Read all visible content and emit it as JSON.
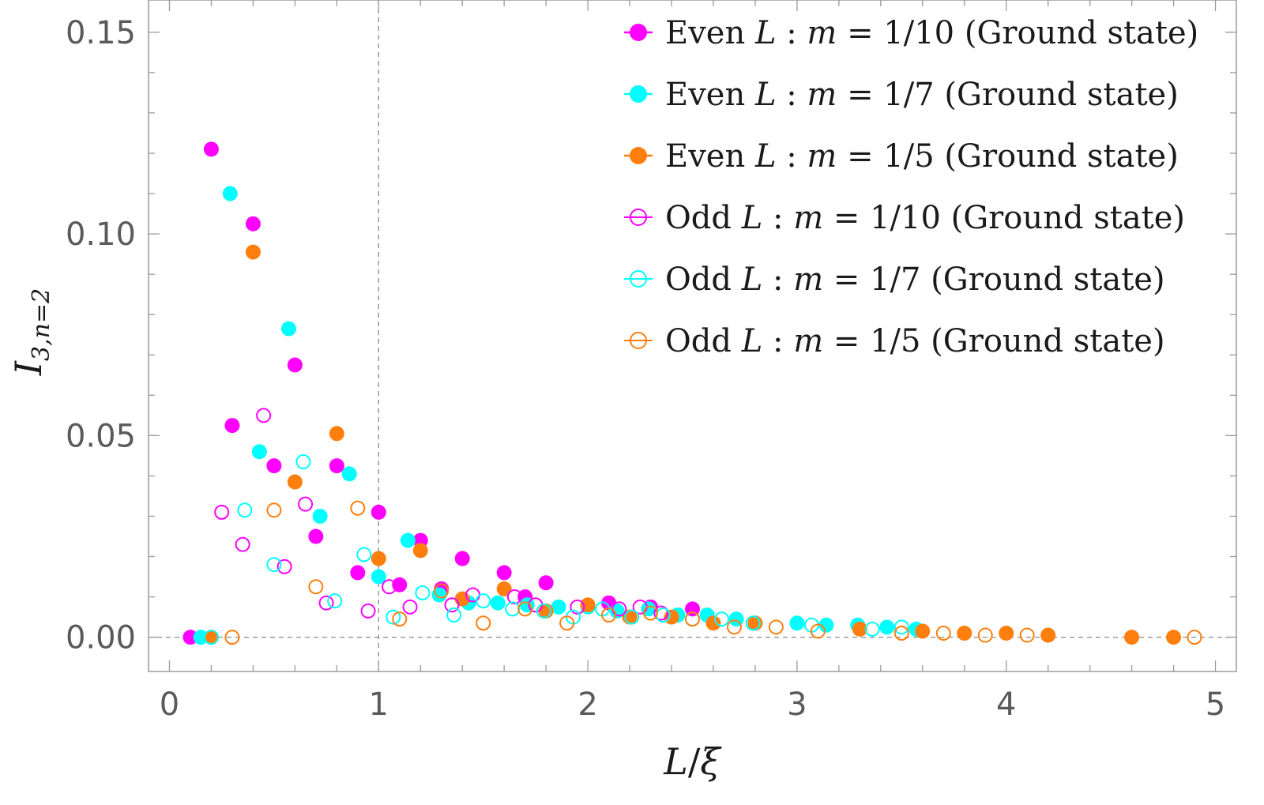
{
  "chart_data": {
    "type": "scatter",
    "title": "",
    "xlabel": "L/ξ",
    "ylabel": "I3,n=2",
    "ylabel_parts": {
      "main": "I",
      "sub": "3,n=2"
    },
    "xlim": [
      -0.1,
      5.1
    ],
    "ylim": [
      -0.0085,
      0.158
    ],
    "x_ticks": [
      0,
      1,
      2,
      3,
      4,
      5
    ],
    "x_tick_labels": [
      "0",
      "1",
      "2",
      "3",
      "4",
      "5"
    ],
    "y_ticks": [
      0.0,
      0.05,
      0.1,
      0.15
    ],
    "y_tick_labels": [
      "0.00",
      "0.05",
      "0.10",
      "0.15"
    ],
    "x_minor_step": 0.2,
    "y_minor_step": 0.01,
    "grid": false,
    "reference_lines": [
      {
        "axis": "x",
        "value": 1,
        "style": "dashed"
      },
      {
        "axis": "y",
        "value": 0,
        "style": "dashed"
      }
    ],
    "legend_position": "top-right",
    "series": [
      {
        "name": "Even L :  m = 1/10 (Ground state)",
        "color": "#ff00ff",
        "filled": true,
        "points": [
          [
            0.1,
            0.0
          ],
          [
            0.2,
            0.121
          ],
          [
            0.3,
            0.0525
          ],
          [
            0.4,
            0.1025
          ],
          [
            0.5,
            0.0425
          ],
          [
            0.6,
            0.0675
          ],
          [
            0.7,
            0.025
          ],
          [
            0.8,
            0.0425
          ],
          [
            0.9,
            0.016
          ],
          [
            1.0,
            0.031
          ],
          [
            1.1,
            0.013
          ],
          [
            1.2,
            0.024
          ],
          [
            1.3,
            0.012
          ],
          [
            1.4,
            0.0195
          ],
          [
            1.6,
            0.016
          ],
          [
            1.7,
            0.01
          ],
          [
            1.8,
            0.0135
          ],
          [
            2.1,
            0.0085
          ],
          [
            2.3,
            0.0075
          ],
          [
            2.5,
            0.007
          ]
        ]
      },
      {
        "name": "Even L :  m = 1/7 (Ground state)",
        "color": "#00ffff",
        "filled": true,
        "points": [
          [
            0.15,
            0.0
          ],
          [
            0.29,
            0.11
          ],
          [
            0.43,
            0.046
          ],
          [
            0.57,
            0.0765
          ],
          [
            0.72,
            0.03
          ],
          [
            0.86,
            0.0405
          ],
          [
            1.0,
            0.015
          ],
          [
            1.14,
            0.024
          ],
          [
            1.29,
            0.0105
          ],
          [
            1.43,
            0.0085
          ],
          [
            1.57,
            0.0085
          ],
          [
            1.71,
            0.008
          ],
          [
            1.86,
            0.0075
          ],
          [
            2.0,
            0.0075
          ],
          [
            2.14,
            0.0065
          ],
          [
            2.29,
            0.007
          ],
          [
            2.43,
            0.0055
          ],
          [
            2.57,
            0.0055
          ],
          [
            2.71,
            0.0045
          ],
          [
            2.8,
            0.0035
          ],
          [
            3.0,
            0.0035
          ],
          [
            3.14,
            0.003
          ],
          [
            3.29,
            0.003
          ],
          [
            3.43,
            0.0025
          ],
          [
            3.57,
            0.002
          ]
        ]
      },
      {
        "name": "Even L :  m = 1/5 (Ground state)",
        "color": "#ff7f0e",
        "filled": true,
        "points": [
          [
            0.2,
            0.0
          ],
          [
            0.4,
            0.0955
          ],
          [
            0.6,
            0.0385
          ],
          [
            0.8,
            0.0505
          ],
          [
            1.0,
            0.0195
          ],
          [
            1.2,
            0.0215
          ],
          [
            1.4,
            0.0095
          ],
          [
            1.6,
            0.012
          ],
          [
            1.8,
            0.0065
          ],
          [
            2.0,
            0.008
          ],
          [
            2.2,
            0.005
          ],
          [
            2.4,
            0.005
          ],
          [
            2.6,
            0.0035
          ],
          [
            2.8,
            0.0035
          ],
          [
            3.3,
            0.002
          ],
          [
            3.6,
            0.0015
          ],
          [
            3.8,
            0.001
          ],
          [
            4.0,
            0.001
          ],
          [
            4.2,
            0.0005
          ],
          [
            4.6,
            0.0
          ],
          [
            4.8,
            0.0
          ]
        ]
      },
      {
        "name": "Odd L :  m = 1/10 (Ground state)",
        "color": "#ff00ff",
        "filled": false,
        "points": [
          [
            0.25,
            0.031
          ],
          [
            0.35,
            0.023
          ],
          [
            0.45,
            0.055
          ],
          [
            0.55,
            0.0175
          ],
          [
            0.65,
            0.033
          ],
          [
            0.75,
            0.0085
          ],
          [
            0.95,
            0.0065
          ],
          [
            1.05,
            0.0125
          ],
          [
            1.15,
            0.0075
          ],
          [
            1.35,
            0.008
          ],
          [
            1.45,
            0.0105
          ],
          [
            1.65,
            0.01
          ],
          [
            1.75,
            0.008
          ],
          [
            1.95,
            0.0075
          ],
          [
            2.15,
            0.007
          ],
          [
            2.25,
            0.0075
          ],
          [
            2.35,
            0.006
          ]
        ]
      },
      {
        "name": "Odd L :  m = 1/7 (Ground state)",
        "color": "#00ffff",
        "filled": false,
        "points": [
          [
            0.2,
            0.0
          ],
          [
            0.36,
            0.0315
          ],
          [
            0.5,
            0.018
          ],
          [
            0.64,
            0.0435
          ],
          [
            0.79,
            0.009
          ],
          [
            0.93,
            0.0205
          ],
          [
            1.07,
            0.005
          ],
          [
            1.21,
            0.011
          ],
          [
            1.36,
            0.0055
          ],
          [
            1.5,
            0.009
          ],
          [
            1.64,
            0.007
          ],
          [
            1.79,
            0.0065
          ],
          [
            1.93,
            0.005
          ],
          [
            2.07,
            0.007
          ],
          [
            2.21,
            0.005
          ],
          [
            2.36,
            0.0055
          ],
          [
            2.5,
            0.0045
          ],
          [
            2.64,
            0.0045
          ],
          [
            2.79,
            0.0035
          ],
          [
            3.07,
            0.003
          ],
          [
            3.36,
            0.002
          ],
          [
            3.5,
            0.0025
          ]
        ]
      },
      {
        "name": "Odd L :  m = 1/5 (Ground state)",
        "color": "#ff7f0e",
        "filled": false,
        "points": [
          [
            0.3,
            0.0
          ],
          [
            0.5,
            0.0315
          ],
          [
            0.7,
            0.0125
          ],
          [
            0.9,
            0.032
          ],
          [
            1.1,
            0.0045
          ],
          [
            1.3,
            0.0115
          ],
          [
            1.5,
            0.0035
          ],
          [
            1.7,
            0.007
          ],
          [
            1.9,
            0.0035
          ],
          [
            2.1,
            0.0055
          ],
          [
            2.3,
            0.006
          ],
          [
            2.5,
            0.0045
          ],
          [
            2.7,
            0.0025
          ],
          [
            2.9,
            0.0025
          ],
          [
            3.1,
            0.0015
          ],
          [
            3.5,
            0.001
          ],
          [
            3.7,
            0.001
          ],
          [
            3.9,
            0.0005
          ],
          [
            4.1,
            0.0005
          ],
          [
            4.9,
            0.0
          ]
        ]
      }
    ],
    "legend": [
      {
        "prefix": "Even",
        "var": "L",
        "sep": " :  ",
        "mvar": "m",
        "eq": " = 1/10 (Ground state)"
      },
      {
        "prefix": "Even",
        "var": "L",
        "sep": " :  ",
        "mvar": "m",
        "eq": " = 1/7 (Ground state)"
      },
      {
        "prefix": "Even",
        "var": "L",
        "sep": " :  ",
        "mvar": "m",
        "eq": " = 1/5 (Ground state)"
      },
      {
        "prefix": "Odd",
        "var": "L",
        "sep": " :  ",
        "mvar": "m",
        "eq": " = 1/10 (Ground state)"
      },
      {
        "prefix": "Odd",
        "var": "L",
        "sep": " :  ",
        "mvar": "m",
        "eq": " = 1/7 (Ground state)"
      },
      {
        "prefix": "Odd",
        "var": "L",
        "sep": " :  ",
        "mvar": "m",
        "eq": " = 1/5 (Ground state)"
      }
    ]
  }
}
